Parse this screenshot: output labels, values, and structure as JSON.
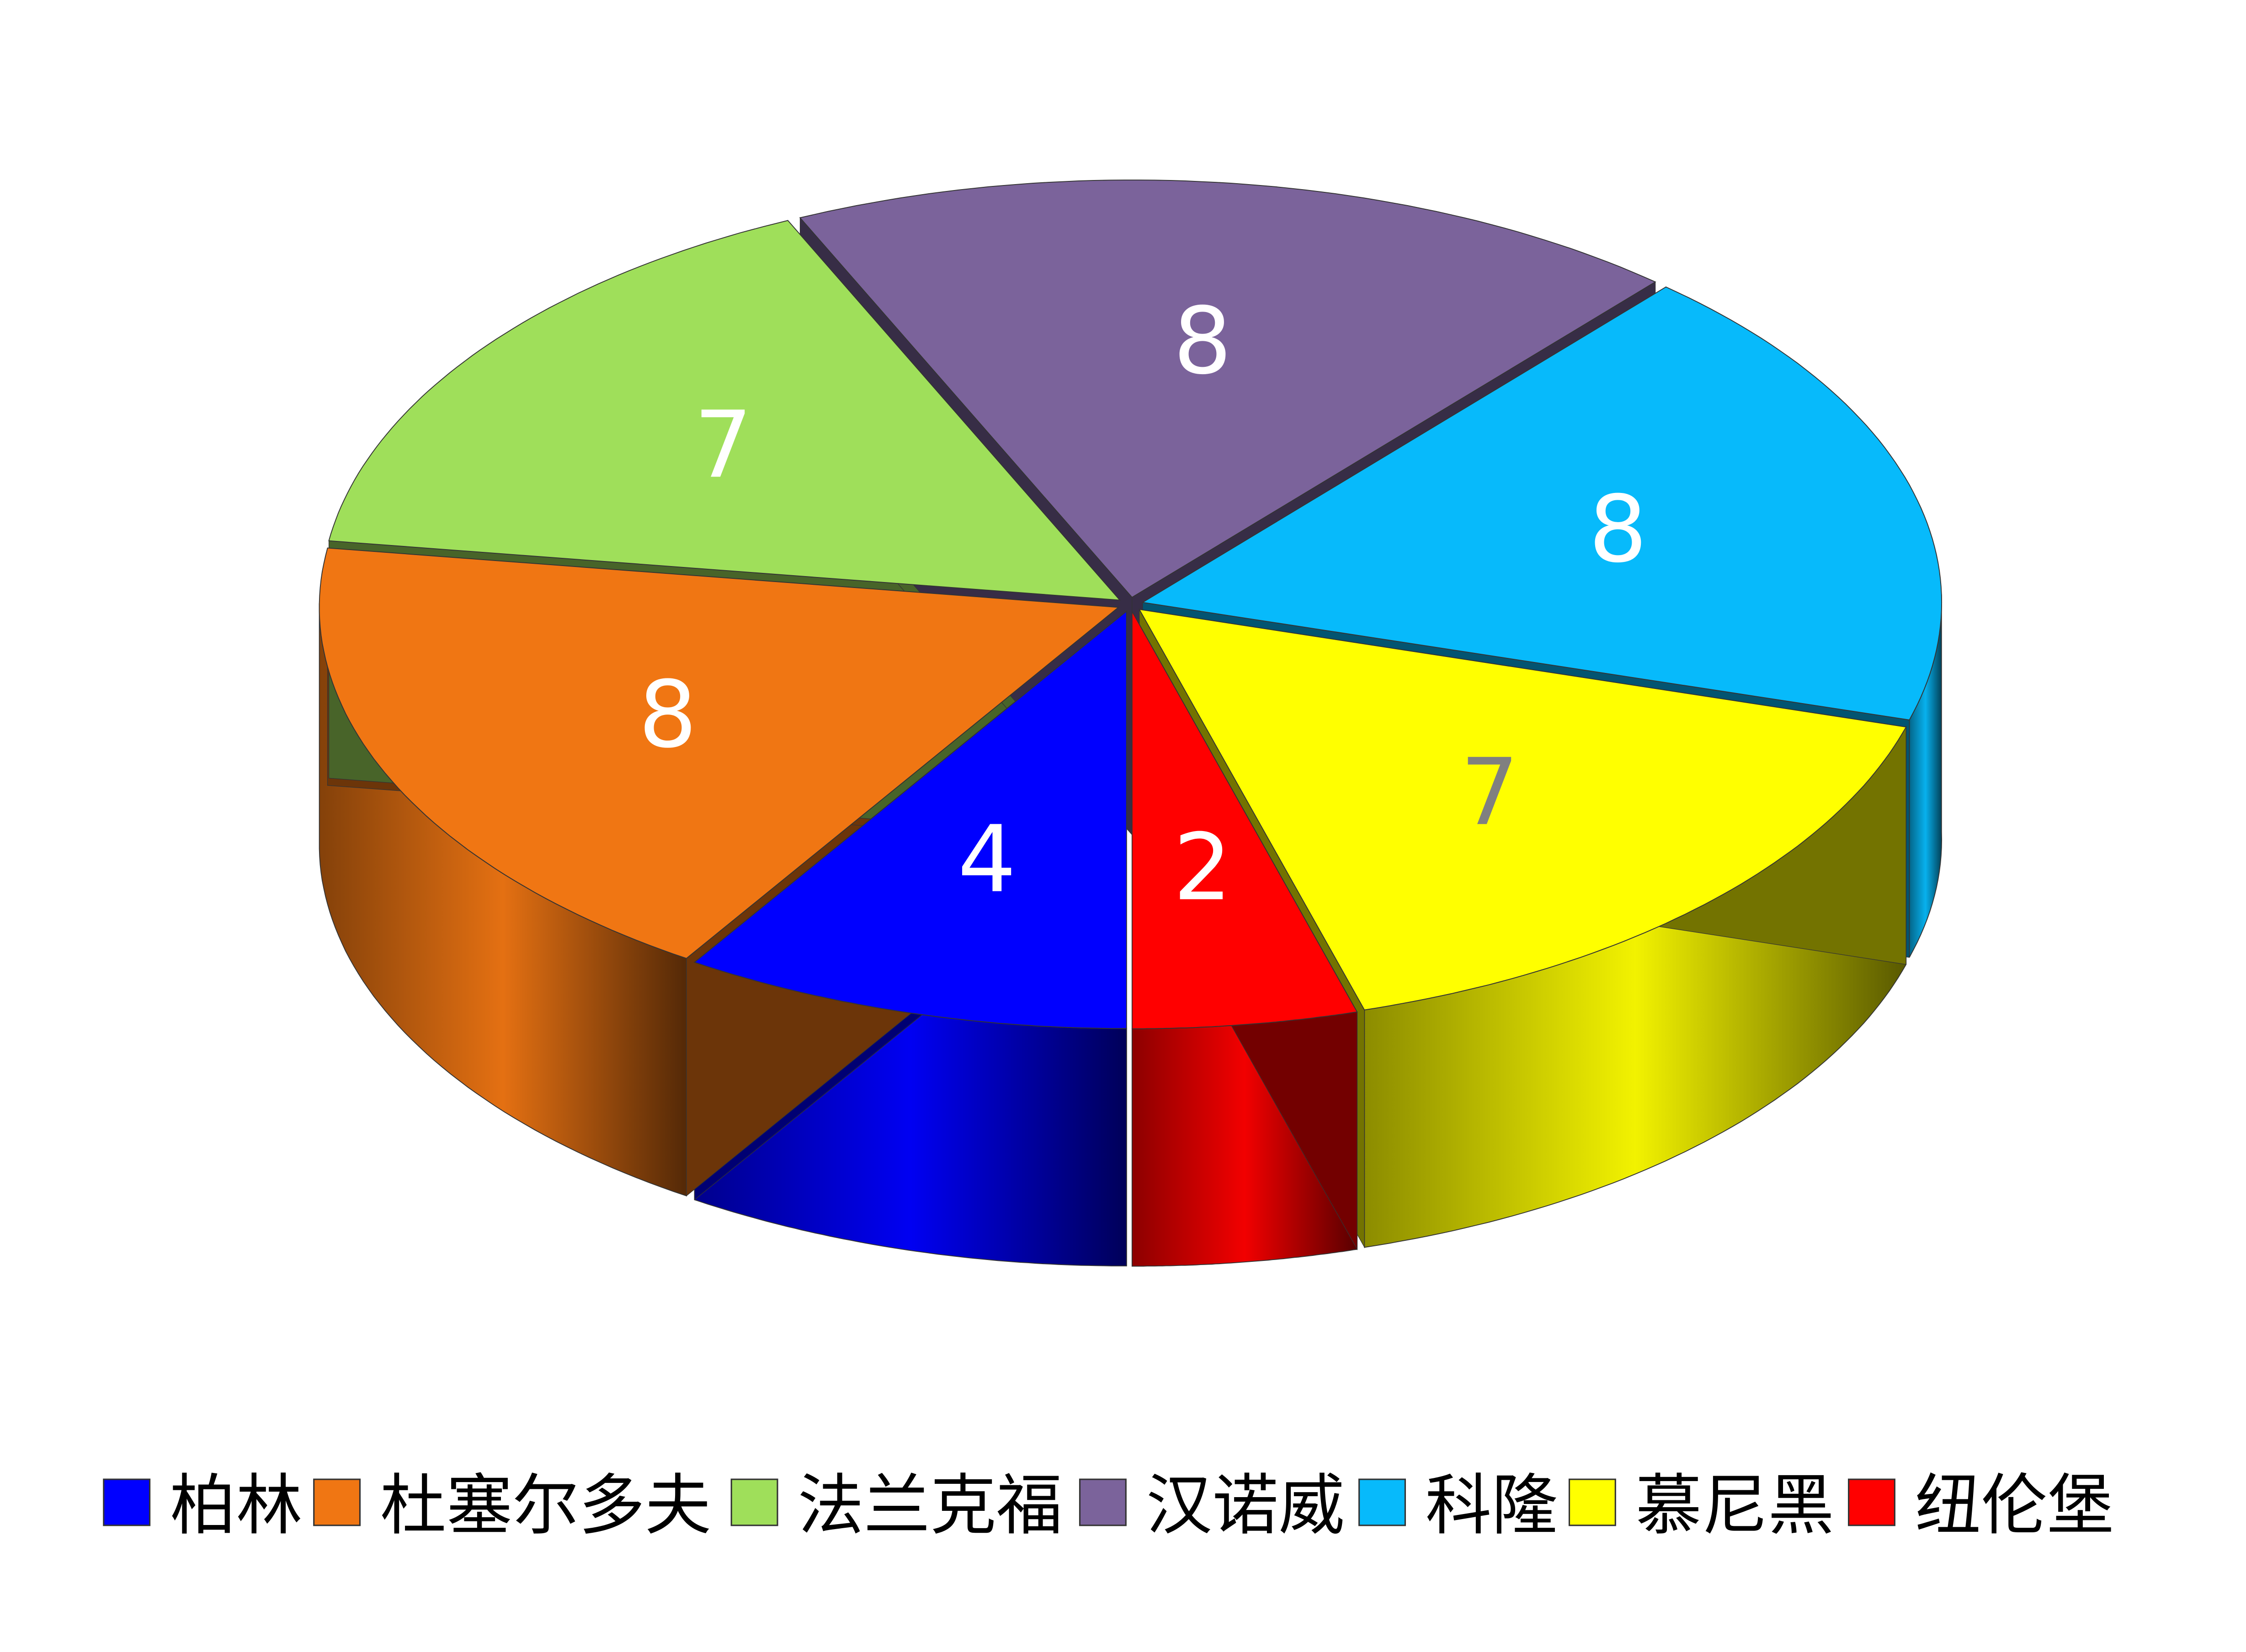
{
  "chart_data": {
    "type": "pie",
    "style": "3d-exploded",
    "title": "",
    "start_angle_deg": 180,
    "direction": "clockwise",
    "legend_position": "bottom",
    "series": [
      {
        "name": "柏林",
        "value": 4,
        "color": "#0000FF",
        "label_color": "#FFFFFF"
      },
      {
        "name": "杜塞尔多夫",
        "value": 8,
        "color": "#F07613",
        "label_color": "#FFFFFF"
      },
      {
        "name": "法兰克福",
        "value": 7,
        "color": "#9FDF5A",
        "label_color": "#FFFFFF"
      },
      {
        "name": "汉诺威",
        "value": 8,
        "color": "#7B639B",
        "label_color": "#FFFFFF"
      },
      {
        "name": "科隆",
        "value": 8,
        "color": "#07BAFB",
        "label_color": "#FFFFFF"
      },
      {
        "name": "慕尼黑",
        "value": 7,
        "color": "#FFFF00",
        "label_color": "#808080"
      },
      {
        "name": "纽伦堡",
        "value": 2,
        "color": "#FF0000",
        "label_color": "#FFFFFF"
      }
    ]
  }
}
